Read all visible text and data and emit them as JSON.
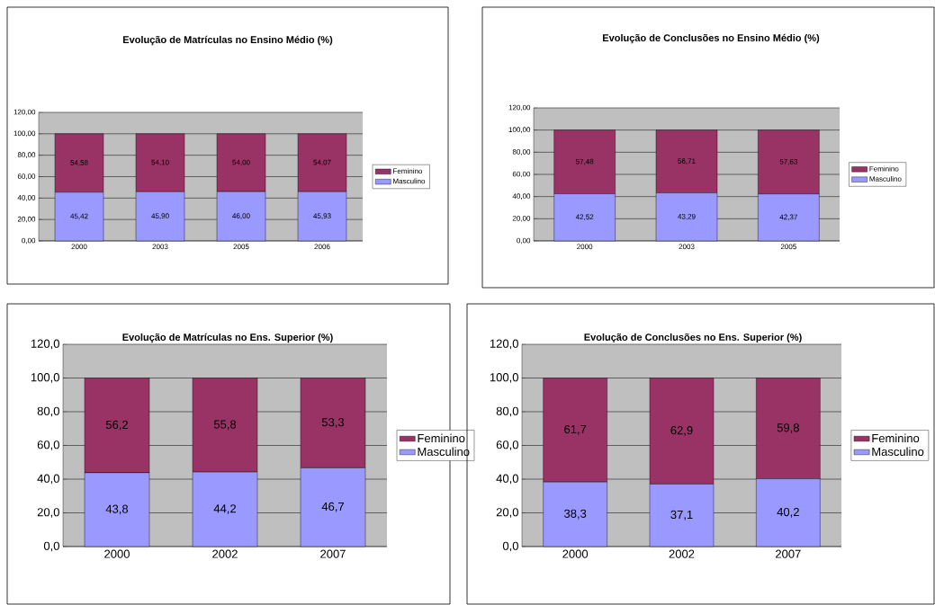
{
  "chart_data": [
    {
      "type": "bar",
      "title": "Evolução de Matrículas no Ensino Médio (%)",
      "categories": [
        "2000",
        "2003",
        "2005",
        "2006"
      ],
      "stacked": true,
      "grid": "y",
      "legend": "right",
      "ylim": [
        0,
        120
      ],
      "yticks": [
        {
          "value": 0,
          "label": "0,00"
        },
        {
          "value": 20,
          "label": "20,00"
        },
        {
          "value": 40,
          "label": "40,00"
        },
        {
          "value": 60,
          "label": "60,00"
        },
        {
          "value": 80,
          "label": "80,00"
        },
        {
          "value": 100,
          "label": "100,00"
        },
        {
          "value": 120,
          "label": "120,00"
        }
      ],
      "series": [
        {
          "name": "Masculino",
          "color": "#9999ff",
          "values": [
            45.42,
            45.9,
            46.0,
            45.93
          ],
          "value_labels": [
            "45,42",
            "45,90",
            "46,00",
            "45,93"
          ]
        },
        {
          "name": "Feminino",
          "color": "#993366",
          "values": [
            54.58,
            54.1,
            54.0,
            54.07
          ],
          "value_labels": [
            "54,58",
            "54,10",
            "54,00",
            "54,07"
          ]
        }
      ]
    },
    {
      "type": "bar",
      "title": "Evolução de Conclusões no Ensino Médio (%)",
      "categories": [
        "2000",
        "2003",
        "2005"
      ],
      "stacked": true,
      "grid": "y",
      "legend": "right",
      "ylim": [
        0,
        120
      ],
      "yticks": [
        {
          "value": 0,
          "label": "0,00"
        },
        {
          "value": 20,
          "label": "20,00"
        },
        {
          "value": 40,
          "label": "40,00"
        },
        {
          "value": 60,
          "label": "60,00"
        },
        {
          "value": 80,
          "label": "80,00"
        },
        {
          "value": 100,
          "label": "100,00"
        },
        {
          "value": 120,
          "label": "120,00"
        }
      ],
      "series": [
        {
          "name": "Masculino",
          "color": "#9999ff",
          "values": [
            42.52,
            43.29,
            42.37
          ],
          "value_labels": [
            "42,52",
            "43,29",
            "42,37"
          ]
        },
        {
          "name": "Feminino",
          "color": "#993366",
          "values": [
            57.48,
            56.71,
            57.63
          ],
          "value_labels": [
            "57,48",
            "56,71",
            "57,63"
          ]
        }
      ]
    },
    {
      "type": "bar",
      "title": "Evolução de Matrículas no Ens. Superior (%)",
      "categories": [
        "2000",
        "2002",
        "2007"
      ],
      "stacked": true,
      "grid": "y",
      "legend": "right",
      "ylim": [
        0,
        120
      ],
      "yticks": [
        {
          "value": 0,
          "label": "0,0"
        },
        {
          "value": 20,
          "label": "20,0"
        },
        {
          "value": 40,
          "label": "40,0"
        },
        {
          "value": 60,
          "label": "60,0"
        },
        {
          "value": 80,
          "label": "80,0"
        },
        {
          "value": 100,
          "label": "100,0"
        },
        {
          "value": 120,
          "label": "120,0"
        }
      ],
      "series": [
        {
          "name": "Masculino",
          "color": "#9999ff",
          "values": [
            43.8,
            44.2,
            46.7
          ],
          "value_labels": [
            "43,8",
            "44,2",
            "46,7"
          ]
        },
        {
          "name": "Feminino",
          "color": "#993366",
          "values": [
            56.2,
            55.8,
            53.3
          ],
          "value_labels": [
            "56,2",
            "55,8",
            "53,3"
          ]
        }
      ]
    },
    {
      "type": "bar",
      "title": "Evolução de Conclusões no Ens. Superior (%)",
      "categories": [
        "2000",
        "2002",
        "2007"
      ],
      "stacked": true,
      "grid": "y",
      "legend": "right",
      "ylim": [
        0,
        120
      ],
      "yticks": [
        {
          "value": 0,
          "label": "0,0"
        },
        {
          "value": 20,
          "label": "20,0"
        },
        {
          "value": 40,
          "label": "40,0"
        },
        {
          "value": 60,
          "label": "60,0"
        },
        {
          "value": 80,
          "label": "80,0"
        },
        {
          "value": 100,
          "label": "100,0"
        },
        {
          "value": 120,
          "label": "120,0"
        }
      ],
      "series": [
        {
          "name": "Masculino",
          "color": "#9999ff",
          "values": [
            38.3,
            37.1,
            40.2
          ],
          "value_labels": [
            "38,3",
            "37,1",
            "40,2"
          ]
        },
        {
          "name": "Feminino",
          "color": "#993366",
          "values": [
            61.7,
            62.9,
            59.8
          ],
          "value_labels": [
            "61,7",
            "62,9",
            "59,8"
          ]
        }
      ]
    }
  ]
}
